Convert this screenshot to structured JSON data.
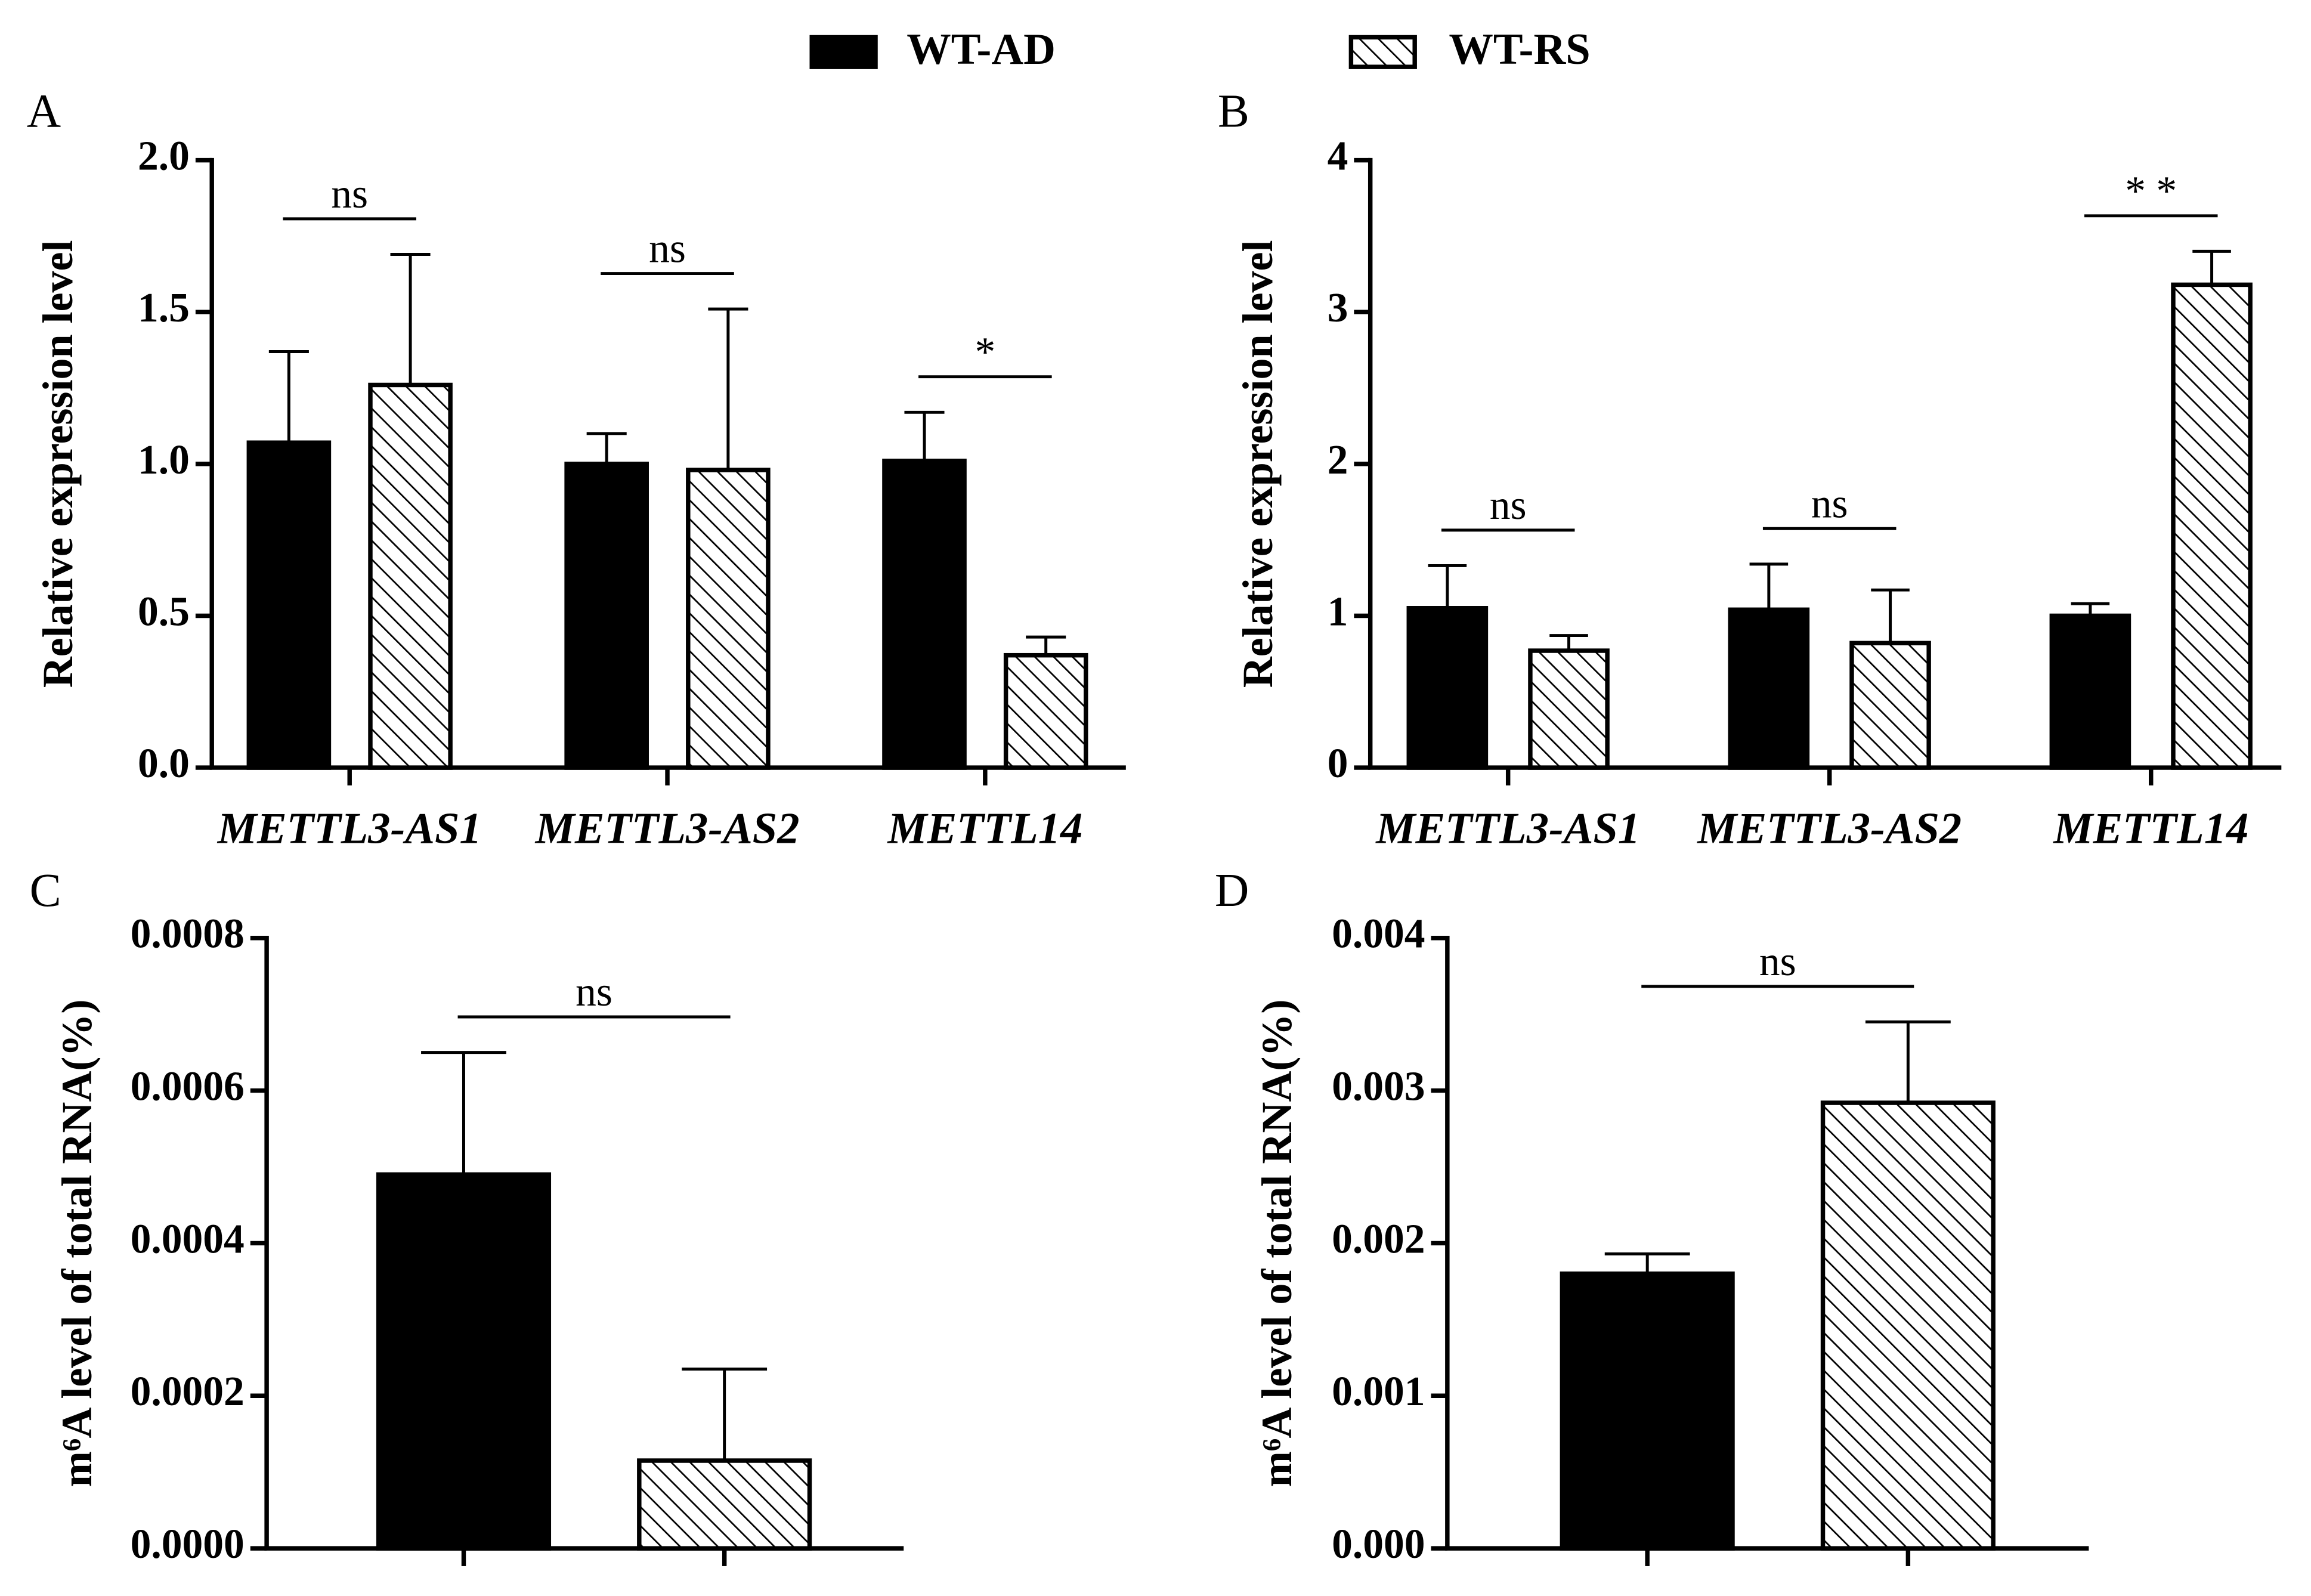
{
  "chart_data": [
    {
      "type": "bar",
      "panel": "A",
      "ylabel": "Relative  expression level",
      "categories": [
        "METTL3-AS1",
        "METTL3-AS2",
        "METTL14"
      ],
      "series": [
        {
          "name": "WT-AD",
          "color": "#000000",
          "pattern": "solid",
          "values": [
            1.07,
            1.0,
            1.01
          ],
          "errors": [
            0.3,
            0.1,
            0.16
          ]
        },
        {
          "name": "WT-RS",
          "color": "#000000",
          "pattern": "hatch",
          "values": [
            1.26,
            0.98,
            0.37
          ],
          "errors": [
            0.43,
            0.53,
            0.06
          ]
        }
      ],
      "significance": [
        "ns",
        "ns",
        "*"
      ],
      "ylim": [
        0,
        2
      ],
      "yticks": [
        {
          "value": 0,
          "label": "0.0"
        },
        0.5,
        {
          "value": 1,
          "label": "1.0"
        },
        1.5,
        {
          "value": 2,
          "label": "2.0"
        }
      ]
    },
    {
      "type": "bar",
      "panel": "B",
      "ylabel": "Relative  expression level",
      "categories": [
        "METTL3-AS1",
        "METTL3-AS2",
        "METTL14"
      ],
      "series": [
        {
          "color": "#000000",
          "pattern": "solid",
          "values": [
            1.05,
            1.04,
            1.0
          ],
          "errors": [
            0.28,
            0.3,
            0.08
          ]
        },
        {
          "color": "#000000",
          "pattern": "hatch",
          "values": [
            0.77,
            0.82,
            3.18
          ],
          "errors": [
            0.1,
            0.35,
            0.22
          ]
        }
      ],
      "significance": [
        "ns",
        "ns",
        "* *"
      ],
      "ylim": [
        0,
        4
      ],
      "yticks": [
        0,
        1,
        2,
        3,
        4
      ]
    },
    {
      "type": "bar",
      "panel": "C",
      "ylabel": "m⁶A level of total RNA(%)",
      "categories": [
        null
      ],
      "series": [
        {
          "color": "#000000",
          "pattern": "solid",
          "values": [
            0.00049
          ],
          "errors": [
            0.00016
          ]
        },
        {
          "color": "#000000",
          "pattern": "hatch",
          "values": [
            0.000115
          ],
          "errors": [
            0.00012
          ]
        }
      ],
      "significance": [
        "ns"
      ],
      "ylim": [
        0,
        0.0008
      ],
      "yticks": [
        {
          "value": 0,
          "label": "0.0000"
        },
        0.0002,
        0.0004,
        0.0006,
        0.0008
      ]
    },
    {
      "type": "bar",
      "panel": "D",
      "ylabel": "m⁶A level of total RNA(%)",
      "categories": [
        null
      ],
      "series": [
        {
          "color": "#000000",
          "pattern": "solid",
          "values": [
            0.0018
          ],
          "errors": [
            0.00013
          ]
        },
        {
          "color": "#000000",
          "pattern": "hatch",
          "values": [
            0.00292
          ],
          "errors": [
            0.00053
          ]
        }
      ],
      "significance": [
        "ns"
      ],
      "ylim": [
        0,
        0.004
      ],
      "yticks": [
        {
          "value": 0,
          "label": "0.000"
        },
        0.001,
        0.002,
        0.003,
        0.004
      ]
    }
  ]
}
